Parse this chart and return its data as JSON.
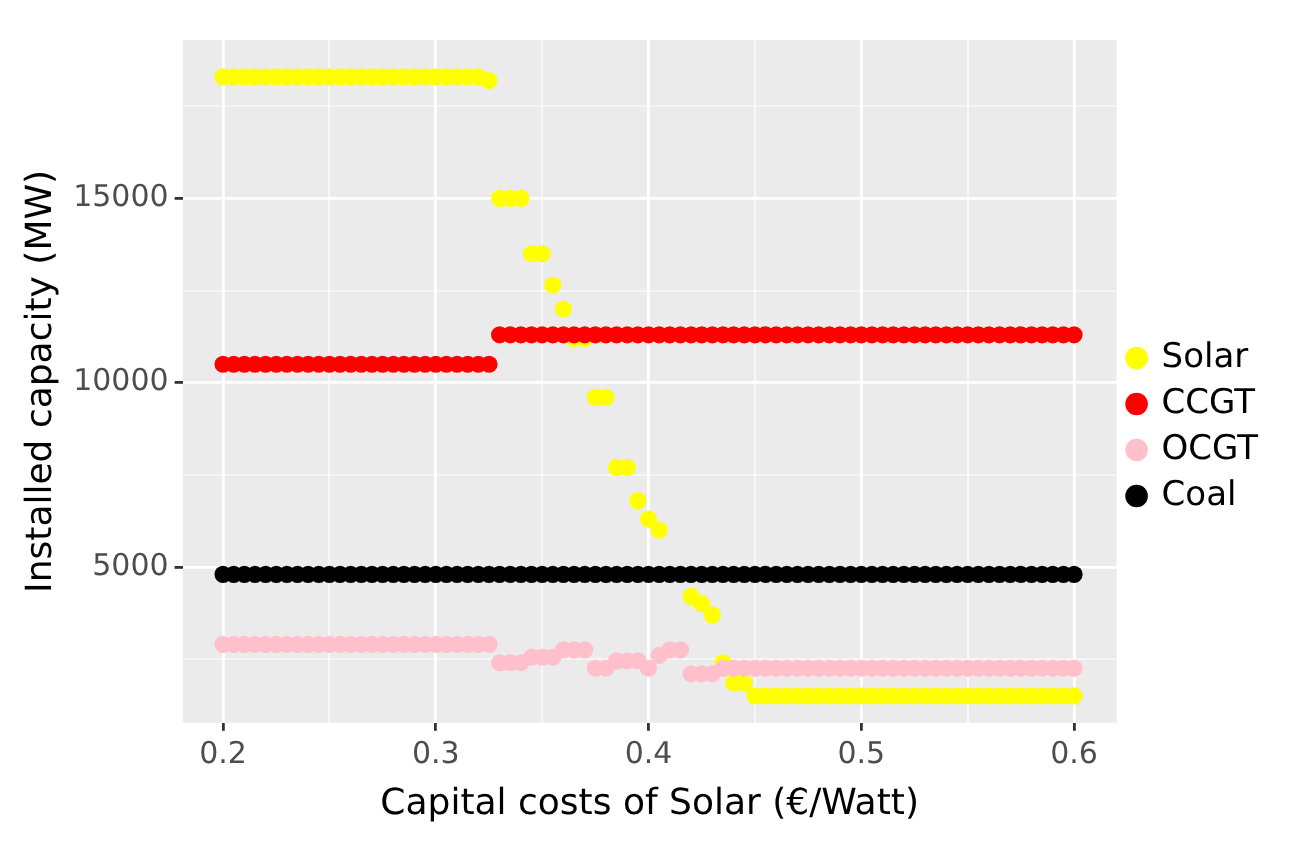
{
  "chart_data": {
    "type": "scatter",
    "xlabel": "Capital costs of Solar (€/Watt)",
    "ylabel": "Installed capacity (MW)",
    "x": [
      0.2,
      0.205,
      0.21,
      0.215,
      0.22,
      0.225,
      0.23,
      0.235,
      0.24,
      0.245,
      0.25,
      0.255,
      0.26,
      0.265,
      0.27,
      0.275,
      0.28,
      0.285,
      0.29,
      0.295,
      0.3,
      0.305,
      0.31,
      0.315,
      0.32,
      0.325,
      0.33,
      0.335,
      0.34,
      0.345,
      0.35,
      0.355,
      0.36,
      0.365,
      0.37,
      0.375,
      0.38,
      0.385,
      0.39,
      0.395,
      0.4,
      0.405,
      0.41,
      0.415,
      0.42,
      0.425,
      0.43,
      0.435,
      0.44,
      0.445,
      0.45,
      0.455,
      0.46,
      0.465,
      0.47,
      0.475,
      0.48,
      0.485,
      0.49,
      0.495,
      0.5,
      0.505,
      0.51,
      0.515,
      0.52,
      0.525,
      0.53,
      0.535,
      0.54,
      0.545,
      0.55,
      0.555,
      0.56,
      0.565,
      0.57,
      0.575,
      0.58,
      0.585,
      0.59,
      0.595,
      0.6
    ],
    "series": [
      {
        "name": "Solar",
        "color": "#ffff00",
        "values": [
          18300,
          18300,
          18300,
          18300,
          18300,
          18300,
          18300,
          18300,
          18300,
          18300,
          18300,
          18300,
          18300,
          18300,
          18300,
          18300,
          18300,
          18300,
          18300,
          18300,
          18300,
          18300,
          18300,
          18300,
          18300,
          18200,
          15000,
          15000,
          15000,
          13500,
          13500,
          12650,
          12000,
          11200,
          11200,
          9600,
          9600,
          7700,
          7700,
          6800,
          6300,
          6000,
          null,
          null,
          4200,
          4000,
          3700,
          2400,
          1850,
          1850,
          1500,
          1500,
          1500,
          1500,
          1500,
          1500,
          1500,
          1500,
          1500,
          1500,
          1500,
          1500,
          1500,
          1500,
          1500,
          1500,
          1500,
          1500,
          1500,
          1500,
          1500,
          1500,
          1500,
          1500,
          1500,
          1500,
          1500,
          1500,
          1500,
          1500,
          1500
        ]
      },
      {
        "name": "CCGT",
        "color": "#ff0000",
        "values": [
          10500,
          10500,
          10500,
          10500,
          10500,
          10500,
          10500,
          10500,
          10500,
          10500,
          10500,
          10500,
          10500,
          10500,
          10500,
          10500,
          10500,
          10500,
          10500,
          10500,
          10500,
          10500,
          10500,
          10500,
          10500,
          10500,
          11300,
          11300,
          11300,
          11300,
          11300,
          11300,
          11300,
          11300,
          11300,
          11300,
          11300,
          11300,
          11300,
          11300,
          11300,
          11300,
          11300,
          11300,
          11300,
          11300,
          11300,
          11300,
          11300,
          11300,
          11300,
          11300,
          11300,
          11300,
          11300,
          11300,
          11300,
          11300,
          11300,
          11300,
          11300,
          11300,
          11300,
          11300,
          11300,
          11300,
          11300,
          11300,
          11300,
          11300,
          11300,
          11300,
          11300,
          11300,
          11300,
          11300,
          11300,
          11300,
          11300,
          11300,
          11300
        ]
      },
      {
        "name": "OCGT",
        "color": "#ffc0cb",
        "values": [
          2900,
          2900,
          2900,
          2900,
          2900,
          2900,
          2900,
          2900,
          2900,
          2900,
          2900,
          2900,
          2900,
          2900,
          2900,
          2900,
          2900,
          2900,
          2900,
          2900,
          2900,
          2900,
          2900,
          2900,
          2900,
          2900,
          2400,
          2400,
          2400,
          2550,
          2550,
          2550,
          2750,
          2750,
          2750,
          2250,
          2250,
          2450,
          2450,
          2450,
          2250,
          2600,
          2750,
          2750,
          2100,
          2100,
          2100,
          2250,
          2250,
          2250,
          2250,
          2250,
          2250,
          2250,
          2250,
          2250,
          2250,
          2250,
          2250,
          2250,
          2250,
          2250,
          2250,
          2250,
          2250,
          2250,
          2250,
          2250,
          2250,
          2250,
          2250,
          2250,
          2250,
          2250,
          2250,
          2250,
          2250,
          2250,
          2250,
          2250,
          2250
        ]
      },
      {
        "name": "Coal",
        "color": "#000000",
        "values": [
          4800,
          4800,
          4800,
          4800,
          4800,
          4800,
          4800,
          4800,
          4800,
          4800,
          4800,
          4800,
          4800,
          4800,
          4800,
          4800,
          4800,
          4800,
          4800,
          4800,
          4800,
          4800,
          4800,
          4800,
          4800,
          4800,
          4800,
          4800,
          4800,
          4800,
          4800,
          4800,
          4800,
          4800,
          4800,
          4800,
          4800,
          4800,
          4800,
          4800,
          4800,
          4800,
          4800,
          4800,
          4800,
          4800,
          4800,
          4800,
          4800,
          4800,
          4800,
          4800,
          4800,
          4800,
          4800,
          4800,
          4800,
          4800,
          4800,
          4800,
          4800,
          4800,
          4800,
          4800,
          4800,
          4800,
          4800,
          4800,
          4800,
          4800,
          4800,
          4800,
          4800,
          4800,
          4800,
          4800,
          4800,
          4800,
          4800,
          4800,
          4800
        ]
      }
    ],
    "xlim": [
      0.181,
      0.62
    ],
    "ylim": [
      770,
      19300
    ],
    "xticks": [
      0.2,
      {
        "value": 0.25,
        "label": null
      },
      0.3,
      {
        "value": 0.35,
        "label": null
      },
      0.4,
      {
        "value": 0.45,
        "label": null
      },
      0.5,
      {
        "value": 0.55,
        "label": null
      },
      0.6
    ],
    "yticks": [
      {
        "value": 2500,
        "label": null
      },
      5000,
      {
        "value": 7500,
        "label": null
      },
      10000,
      {
        "value": 12500,
        "label": null
      },
      15000,
      {
        "value": 17500,
        "label": null
      }
    ],
    "grid": true,
    "legend": "right",
    "marker": "circle"
  }
}
